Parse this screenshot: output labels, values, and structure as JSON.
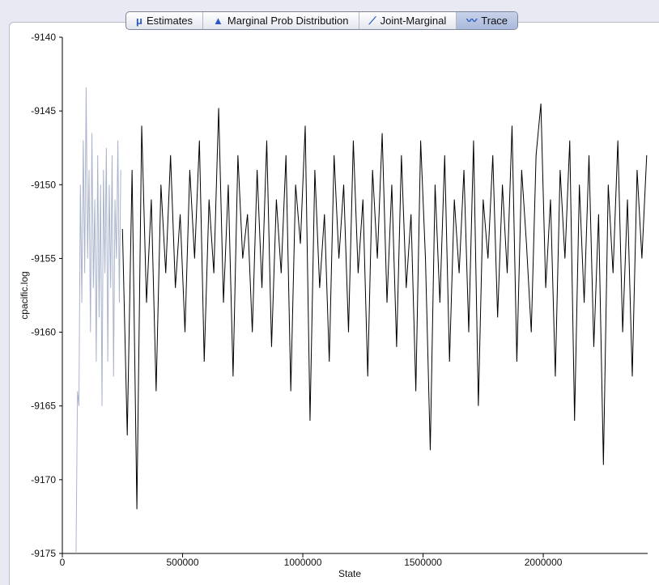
{
  "tabs": [
    "Estimates",
    "Marginal Prob Distribution",
    "Joint-Marginal",
    "Trace"
  ],
  "selected_tab": "Trace",
  "chart_data": {
    "type": "line",
    "xlabel": "State",
    "ylabel": "cpacific.log",
    "xlim": [
      0,
      2434000
    ],
    "ylim": [
      -9175,
      -9140
    ],
    "xticks": [
      0,
      500000,
      1000000,
      1500000,
      2000000
    ],
    "yticks": [
      -9140,
      -9145,
      -9150,
      -9155,
      -9160,
      -9165,
      -9170,
      -9175
    ],
    "series": [
      {
        "color": "#a9b3cb",
        "x": [
          57000,
          63000,
          69000,
          75000,
          81000,
          87000,
          93000,
          99000,
          105000,
          111000,
          117000,
          123000,
          129000,
          135000,
          141000,
          147000,
          153000,
          159000,
          165000,
          171000,
          177000,
          183000,
          189000,
          195000,
          201000,
          207000,
          213000,
          219000,
          225000,
          231000,
          237000,
          243000
        ],
        "values": [
          -9175,
          -9164,
          -9165,
          -9150,
          -9158,
          -9147,
          -9156,
          -9143.4,
          -9155,
          -9149,
          -9160,
          -9146.5,
          -9157,
          -9151,
          -9162,
          -9148,
          -9159,
          -9150,
          -9165,
          -9149,
          -9156,
          -9147.5,
          -9162,
          -9150,
          -9157,
          -9148,
          -9163,
          -9151,
          -9155,
          -9147,
          -9158,
          -9149
        ]
      },
      {
        "color": "#000000",
        "x": [
          250000,
          270000,
          290000,
          310000,
          330000,
          350000,
          370000,
          390000,
          410000,
          430000,
          450000,
          470000,
          490000,
          510000,
          530000,
          550000,
          570000,
          590000,
          610000,
          630000,
          650000,
          670000,
          690000,
          710000,
          730000,
          750000,
          770000,
          790000,
          810000,
          830000,
          850000,
          870000,
          890000,
          910000,
          930000,
          950000,
          970000,
          990000,
          1010000,
          1030000,
          1050000,
          1070000,
          1090000,
          1110000,
          1130000,
          1150000,
          1170000,
          1190000,
          1210000,
          1230000,
          1250000,
          1270000,
          1290000,
          1310000,
          1330000,
          1350000,
          1370000,
          1390000,
          1410000,
          1430000,
          1450000,
          1470000,
          1490000,
          1510000,
          1530000,
          1550000,
          1570000,
          1590000,
          1610000,
          1630000,
          1650000,
          1670000,
          1690000,
          1710000,
          1730000,
          1750000,
          1770000,
          1790000,
          1810000,
          1830000,
          1850000,
          1870000,
          1890000,
          1910000,
          1930000,
          1950000,
          1970000,
          1990000,
          2010000,
          2030000,
          2050000,
          2070000,
          2090000,
          2110000,
          2130000,
          2150000,
          2170000,
          2190000,
          2210000,
          2230000,
          2250000,
          2270000,
          2290000,
          2310000,
          2330000,
          2350000,
          2370000,
          2390000,
          2410000,
          2430000
        ],
        "values": [
          -9153,
          -9167,
          -9149,
          -9172,
          -9146,
          -9158,
          -9151,
          -9164,
          -9150,
          -9156,
          -9148,
          -9157,
          -9152,
          -9160,
          -9149,
          -9155,
          -9147,
          -9162,
          -9151,
          -9156,
          -9144.8,
          -9158,
          -9150,
          -9163,
          -9148,
          -9155,
          -9152,
          -9160,
          -9149,
          -9157,
          -9147,
          -9161,
          -9151,
          -9156,
          -9148,
          -9164,
          -9150,
          -9154,
          -9146,
          -9166,
          -9149,
          -9157,
          -9152,
          -9162,
          -9148,
          -9155,
          -9150,
          -9160,
          -9147,
          -9156,
          -9151,
          -9163,
          -9149,
          -9155,
          -9146.5,
          -9158,
          -9150,
          -9161,
          -9148,
          -9157,
          -9152,
          -9164,
          -9147,
          -9155,
          -9168,
          -9150,
          -9158,
          -9148,
          -9162,
          -9151,
          -9156,
          -9149,
          -9160,
          -9147,
          -9165,
          -9151,
          -9155,
          -9148,
          -9159,
          -9150,
          -9156,
          -9146,
          -9162,
          -9149,
          -9154,
          -9160,
          -9148,
          -9144.5,
          -9157,
          -9151,
          -9163,
          -9149,
          -9155,
          -9147,
          -9166,
          -9150,
          -9158,
          -9148,
          -9161,
          -9152,
          -9169,
          -9150,
          -9156,
          -9147,
          -9160,
          -9151,
          -9163,
          -9149,
          -9155,
          -9148
        ]
      }
    ]
  }
}
